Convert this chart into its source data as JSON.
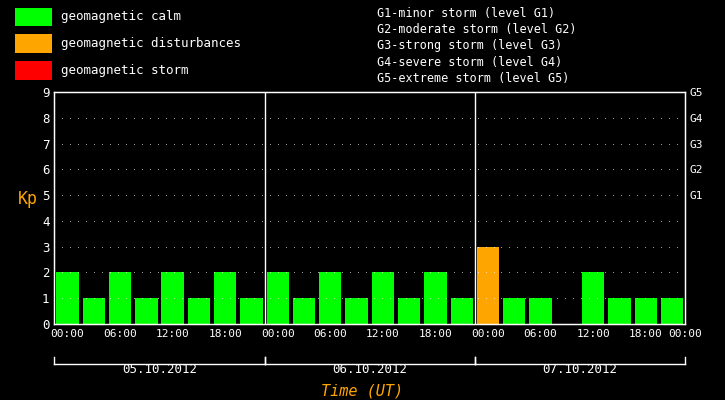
{
  "background_color": "#000000",
  "plot_bg_color": "#000000",
  "bar_color_calm": "#00ff00",
  "bar_color_disturb": "#ffa500",
  "bar_color_storm": "#ff0000",
  "title_color": "#ffa500",
  "label_color": "#ffffff",
  "kp_label_color": "#ffa500",
  "dot_color": "#ffffff",
  "day1_label": "05.10.2012",
  "day2_label": "06.10.2012",
  "day3_label": "07.10.2012",
  "xlabel": "Time (UT)",
  "ylabel": "Kp",
  "ylim": [
    0,
    9
  ],
  "yticks": [
    0,
    1,
    2,
    3,
    4,
    5,
    6,
    7,
    8,
    9
  ],
  "right_labels": [
    "G5",
    "G4",
    "G3",
    "G2",
    "G1"
  ],
  "right_label_yticks": [
    9,
    8,
    7,
    6,
    5
  ],
  "legend_items": [
    {
      "label": "geomagnetic calm",
      "color": "#00ff00"
    },
    {
      "label": "geomagnetic disturbances",
      "color": "#ffa500"
    },
    {
      "label": "geomagnetic storm",
      "color": "#ff0000"
    }
  ],
  "storm_text": [
    "G1-minor storm (level G1)",
    "G2-moderate storm (level G2)",
    "G3-strong storm (level G3)",
    "G4-severe storm (level G4)",
    "G5-extreme storm (level G5)"
  ],
  "kp_values": [
    2,
    1,
    2,
    1,
    2,
    1,
    2,
    1,
    2,
    1,
    2,
    1,
    2,
    1,
    2,
    1,
    3,
    1,
    1,
    0,
    2,
    1,
    1,
    1
  ],
  "n_bars_per_day": 8,
  "bar_width": 0.85,
  "calm_threshold": 3,
  "disturb_threshold": 5
}
